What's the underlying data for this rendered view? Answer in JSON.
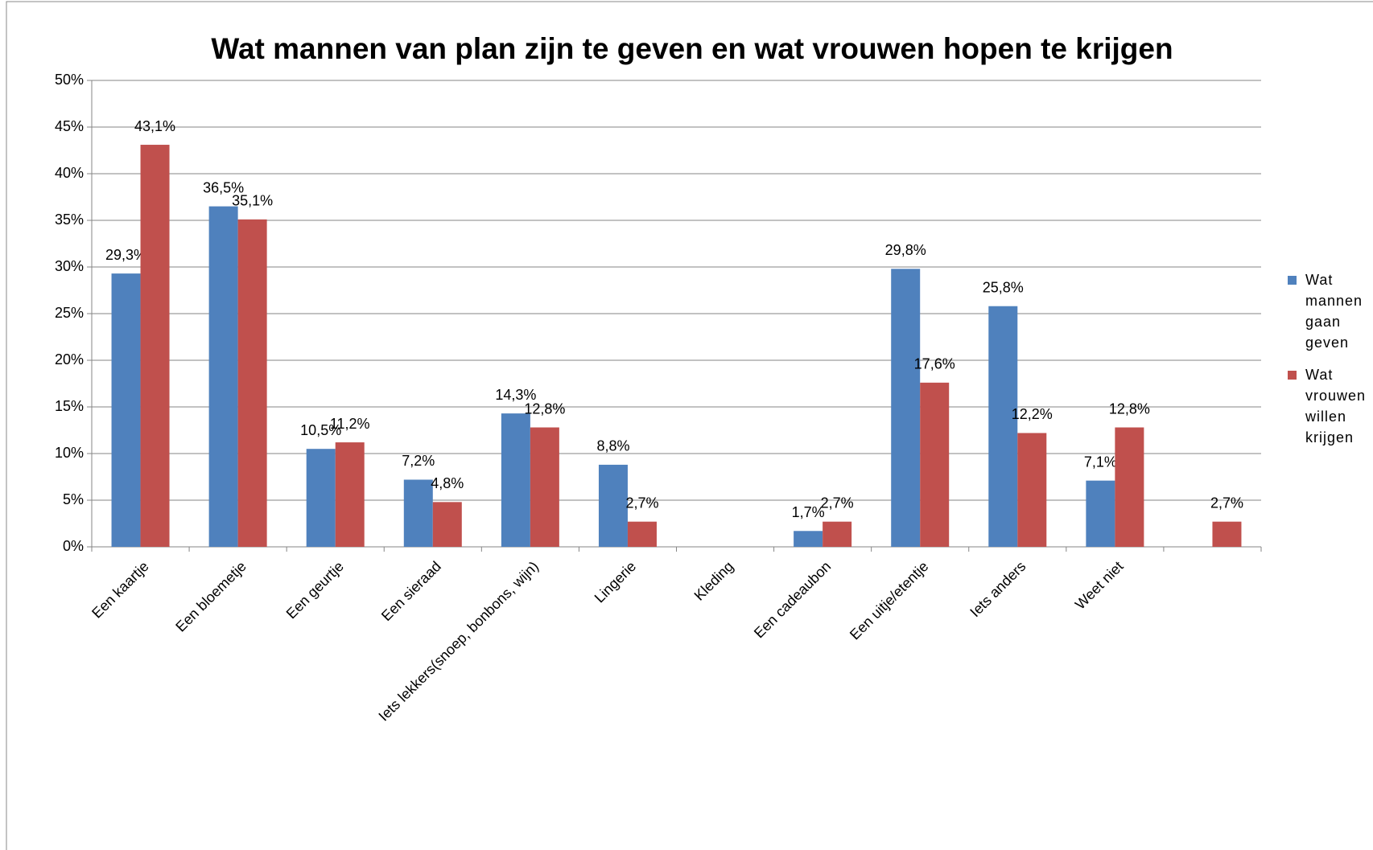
{
  "chart_data": {
    "type": "bar",
    "title": "Wat mannen van plan zijn te geven en wat vrouwen hopen te krijgen",
    "categories": [
      "Een kaartje",
      "Een bloemetje",
      "Een geurtje",
      "Een sieraad",
      "Iets lekkers(snoep, bonbons, wijn)",
      "Lingerie",
      "Kleding",
      "Een cadeaubon",
      "Een uitje/etentje",
      "Iets anders",
      "Weet niet",
      null
    ],
    "series": [
      {
        "name": "Wat mannen gaan geven",
        "color": "#4f81bd",
        "values": [
          29.3,
          36.5,
          10.5,
          7.2,
          14.3,
          8.8,
          null,
          1.7,
          29.8,
          25.8,
          7.1,
          null
        ],
        "value_labels": [
          "29,3%",
          "36,5%",
          "10,5%",
          "7,2%",
          "14,3%",
          "8,8%",
          null,
          "1,7%",
          "29,8%",
          "25,8%",
          "7,1%",
          null
        ]
      },
      {
        "name": "Wat vrouwen willen krijgen",
        "color": "#c0504d",
        "values": [
          43.1,
          35.1,
          11.2,
          4.8,
          12.8,
          2.7,
          null,
          2.7,
          17.6,
          12.2,
          12.8,
          2.7
        ],
        "value_labels": [
          "43,1%",
          "35,1%",
          "11,2%",
          "4,8%",
          "12,8%",
          "2,7%",
          null,
          "2,7%",
          "17,6%",
          "12,2%",
          "12,8%",
          "2,7%"
        ]
      }
    ],
    "ylim": [
      0,
      50
    ],
    "yticks": [
      {
        "value": 0,
        "label": "0%"
      },
      {
        "value": 5,
        "label": "5%"
      },
      {
        "value": 10,
        "label": "10%"
      },
      {
        "value": 15,
        "label": "15%"
      },
      {
        "value": 20,
        "label": "20%"
      },
      {
        "value": 25,
        "label": "25%"
      },
      {
        "value": 30,
        "label": "30%"
      },
      {
        "value": 35,
        "label": "35%"
      },
      {
        "value": 40,
        "label": "40%"
      },
      {
        "value": 45,
        "label": "45%"
      },
      {
        "value": 50,
        "label": "50%"
      }
    ],
    "grid": true,
    "legend": "right"
  }
}
